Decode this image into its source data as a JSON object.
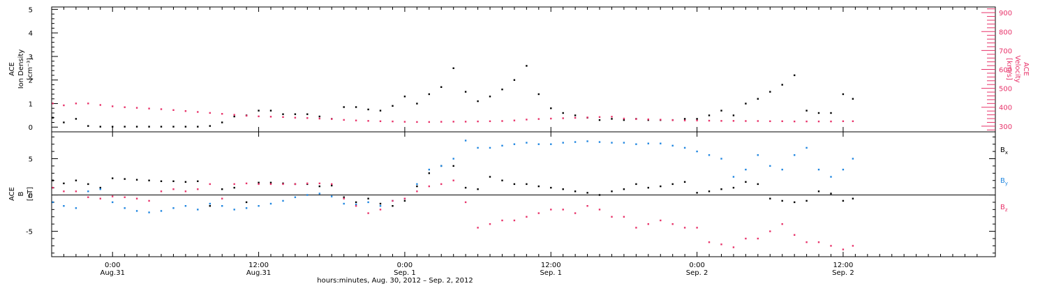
{
  "colors": {
    "density": "#000000",
    "velocity": "#e8336a",
    "bx": "#000000",
    "by": "#1f86e0",
    "bz": "#e8336a",
    "axis": "#000000"
  },
  "xlabel": "hours:minutes, Aug. 30, 2012 – Sep. 2, 2012",
  "x_ticks": [
    {
      "hour": 24,
      "line1": "0:00",
      "line2": "Aug.31"
    },
    {
      "hour": 36,
      "line1": "12:00",
      "line2": "Aug.31"
    },
    {
      "hour": 48,
      "line1": "0:00",
      "line2": "Sep. 1"
    },
    {
      "hour": 60,
      "line1": "12:00",
      "line2": "Sep. 1"
    },
    {
      "hour": 72,
      "line1": "0:00",
      "line2": "Sep. 2"
    },
    {
      "hour": 84,
      "line1": "12:00",
      "line2": "Sep. 2"
    }
  ],
  "panel1": {
    "left_axis_label": [
      "ACE",
      "Ion Density",
      "[cm⁻³]"
    ],
    "right_axis_label": [
      "ACE",
      "Velocity",
      "[km/s]"
    ],
    "left_ticks": [
      "0",
      "1",
      "2",
      "3",
      "4",
      "5"
    ],
    "right_ticks": [
      "300",
      "400",
      "500",
      "600",
      "700",
      "800",
      "900"
    ]
  },
  "panel2": {
    "axis_label": [
      "ACE",
      "B",
      "[nT]"
    ],
    "ticks": [
      "-5",
      "0",
      "5"
    ],
    "legend": [
      {
        "label": "Bx",
        "main": "B",
        "sub": "x",
        "color_key": "bx"
      },
      {
        "label": "By",
        "main": "B",
        "sub": "y",
        "color_key": "by"
      },
      {
        "label": "Bz",
        "main": "B",
        "sub": "z",
        "color_key": "bz"
      }
    ]
  },
  "chart_data": [
    {
      "type": "scatter",
      "title": "",
      "xlabel": "hours:minutes, Aug. 30, 2012 – Sep. 2, 2012",
      "xlim": [
        19.0,
        96.5
      ],
      "ylabel": "ACE Ion Density [cm⁻³]",
      "ylim": [
        -0.2,
        5.1
      ],
      "y2label": "ACE Velocity [km/s]",
      "y2lim": [
        270,
        930
      ],
      "grid": false,
      "series": [
        {
          "name": "Ion Density",
          "axis": "left",
          "x": [
            19.1,
            20,
            21,
            22,
            23,
            24,
            25,
            26,
            27,
            28,
            29,
            30,
            31,
            32,
            33,
            34,
            35,
            36,
            37,
            38,
            39,
            40,
            41,
            42,
            43,
            44,
            45,
            46,
            47,
            48,
            49,
            50,
            51,
            52,
            53,
            54,
            55,
            56,
            57,
            58,
            59,
            60,
            61,
            62,
            63,
            64,
            65,
            66,
            67,
            68,
            69,
            70,
            71,
            72,
            73,
            74,
            75,
            76,
            77,
            78,
            79,
            80,
            81,
            82,
            83,
            84,
            84.8
          ],
          "y": [
            0.4,
            0.2,
            0.35,
            0.05,
            0.02,
            0.02,
            0.02,
            0.02,
            0.02,
            0.02,
            0.02,
            0.02,
            0.02,
            0.05,
            0.2,
            0.45,
            0.5,
            0.7,
            0.7,
            0.55,
            0.55,
            0.55,
            0.45,
            0.35,
            0.85,
            0.85,
            0.75,
            0.7,
            0.9,
            1.3,
            1.0,
            1.4,
            1.7,
            2.5,
            1.5,
            1.1,
            1.3,
            1.6,
            2.0,
            2.6,
            1.4,
            0.8,
            0.6,
            0.5,
            0.4,
            0.3,
            0.35,
            0.3,
            0.35,
            0.3,
            0.3,
            0.3,
            0.35,
            0.35,
            0.5,
            0.7,
            0.5,
            1.0,
            1.2,
            1.5,
            1.8,
            2.2,
            0.7,
            0.6,
            0.6,
            1.4,
            1.2
          ]
        },
        {
          "name": "Velocity",
          "axis": "right",
          "x": [
            19.1,
            20,
            21,
            22,
            23,
            24,
            25,
            26,
            27,
            28,
            29,
            30,
            31,
            32,
            33,
            34,
            35,
            36,
            37,
            38,
            39,
            40,
            41,
            42,
            43,
            44,
            45,
            46,
            47,
            48,
            49,
            50,
            51,
            52,
            53,
            54,
            55,
            56,
            57,
            58,
            59,
            60,
            61,
            62,
            63,
            64,
            65,
            66,
            67,
            68,
            69,
            70,
            71,
            72,
            73,
            74,
            75,
            76,
            77,
            78,
            79,
            80,
            81,
            82,
            83,
            84,
            84.8
          ],
          "y": [
            420,
            410,
            420,
            420,
            412,
            405,
            400,
            397,
            393,
            390,
            385,
            380,
            375,
            370,
            365,
            360,
            355,
            352,
            350,
            348,
            345,
            343,
            340,
            338,
            333,
            330,
            328,
            326,
            325,
            323,
            322,
            322,
            323,
            324,
            324,
            325,
            326,
            327,
            330,
            335,
            338,
            340,
            342,
            344,
            346,
            348,
            350,
            340,
            338,
            336,
            334,
            332,
            330,
            330,
            329,
            328,
            328,
            327,
            327,
            326,
            326,
            325,
            325,
            325,
            325,
            326,
            326
          ]
        }
      ]
    },
    {
      "type": "scatter",
      "title": "",
      "xlabel": "hours:minutes, Aug. 30, 2012 – Sep. 2, 2012",
      "xlim": [
        19.0,
        96.5
      ],
      "ylabel": "ACE B [nT]",
      "ylim": [
        -8.5,
        8.7
      ],
      "grid": false,
      "series": [
        {
          "name": "Bx",
          "x": [
            19.1,
            20,
            21,
            22,
            23,
            24,
            25,
            26,
            27,
            28,
            29,
            30,
            31,
            32,
            33,
            34,
            35,
            36,
            37,
            38,
            39,
            40,
            41,
            42,
            43,
            44,
            45,
            46,
            47,
            48,
            49,
            50,
            51,
            52,
            53,
            54,
            55,
            56,
            57,
            58,
            59,
            60,
            61,
            62,
            63,
            64,
            65,
            66,
            67,
            68,
            69,
            70,
            71,
            72,
            73,
            74,
            75,
            76,
            77,
            78,
            79,
            80,
            81,
            82,
            83,
            84,
            84.8
          ],
          "y": [
            2.0,
            1.6,
            2.0,
            1.5,
            1.0,
            2.3,
            2.2,
            2.1,
            2.0,
            1.9,
            1.9,
            1.8,
            1.9,
            -1.5,
            0.8,
            1.0,
            -1.0,
            1.7,
            1.7,
            1.6,
            1.5,
            1.5,
            1.2,
            1.3,
            -0.3,
            -1.0,
            -0.5,
            -1.2,
            -1.5,
            -0.8,
            1.2,
            3.0,
            4.0,
            4.0,
            1.0,
            0.8,
            2.5,
            2.0,
            1.5,
            1.5,
            1.2,
            1.0,
            0.8,
            0.5,
            0.3,
            0.0,
            0.5,
            0.8,
            1.5,
            1.0,
            1.2,
            1.5,
            1.8,
            0.3,
            0.5,
            0.8,
            1.0,
            1.8,
            1.5,
            -0.5,
            -0.8,
            -1.0,
            -0.8,
            0.5,
            0.2,
            -0.8,
            -0.5
          ]
        },
        {
          "name": "By",
          "x": [
            19.1,
            20,
            21,
            22,
            23,
            24,
            25,
            26,
            27,
            28,
            29,
            30,
            31,
            32,
            33,
            34,
            35,
            36,
            37,
            38,
            39,
            40,
            41,
            42,
            43,
            44,
            45,
            46,
            47,
            48,
            49,
            50,
            51,
            52,
            53,
            54,
            55,
            56,
            57,
            58,
            59,
            60,
            61,
            62,
            63,
            64,
            65,
            66,
            67,
            68,
            69,
            70,
            71,
            72,
            73,
            74,
            75,
            76,
            77,
            78,
            79,
            80,
            81,
            82,
            83,
            84,
            84.8
          ],
          "y": [
            -1.0,
            -1.5,
            -1.8,
            0.5,
            0.8,
            -1.0,
            -1.8,
            -2.2,
            -2.4,
            -2.2,
            -1.8,
            -1.5,
            -2.0,
            -1.2,
            -1.5,
            -2.0,
            -1.8,
            -1.5,
            -1.2,
            -0.8,
            -0.3,
            0.0,
            0.2,
            -0.2,
            -1.2,
            -1.3,
            -1.0,
            -1.5,
            -0.8,
            -0.5,
            1.5,
            3.5,
            4.0,
            5.0,
            7.5,
            6.5,
            6.5,
            6.8,
            7.0,
            7.2,
            7.0,
            7.0,
            7.2,
            7.3,
            7.4,
            7.3,
            7.2,
            7.2,
            7.0,
            7.1,
            7.1,
            6.8,
            6.5,
            6.0,
            5.5,
            5.0,
            2.5,
            3.5,
            5.5,
            4.0,
            3.5,
            5.5,
            6.5,
            3.5,
            2.5,
            3.5,
            5.0
          ]
        },
        {
          "name": "Bz",
          "x": [
            19.1,
            20,
            21,
            22,
            23,
            24,
            25,
            26,
            27,
            28,
            29,
            30,
            31,
            32,
            33,
            34,
            35,
            36,
            37,
            38,
            39,
            40,
            41,
            42,
            43,
            44,
            45,
            46,
            47,
            48,
            49,
            50,
            51,
            52,
            53,
            54,
            55,
            56,
            57,
            58,
            59,
            60,
            61,
            62,
            63,
            64,
            65,
            66,
            67,
            68,
            69,
            70,
            71,
            72,
            73,
            74,
            75,
            76,
            77,
            78,
            79,
            80,
            81,
            82,
            83,
            84,
            84.8
          ],
          "y": [
            1.0,
            0.5,
            0.5,
            -0.3,
            -0.5,
            -0.2,
            -0.3,
            -0.5,
            -0.8,
            0.5,
            0.8,
            0.5,
            0.8,
            1.5,
            -0.5,
            1.5,
            1.6,
            1.5,
            1.5,
            1.5,
            1.5,
            1.6,
            1.6,
            1.5,
            -0.5,
            -1.5,
            -2.5,
            -2.0,
            -0.8,
            -0.5,
            0.5,
            1.2,
            1.5,
            2.0,
            -1.0,
            -4.5,
            -4.0,
            -3.5,
            -3.5,
            -3.0,
            -2.5,
            -2.0,
            -2.0,
            -2.5,
            -1.5,
            -2.0,
            -3.0,
            -3.0,
            -4.5,
            -4.0,
            -3.5,
            -4.0,
            -4.5,
            -4.5,
            -6.5,
            -6.8,
            -7.2,
            -6.0,
            -6.0,
            -5.0,
            -4.0,
            -5.5,
            -6.5,
            -6.5,
            -7.0,
            -7.5,
            -7.0
          ]
        }
      ]
    }
  ]
}
